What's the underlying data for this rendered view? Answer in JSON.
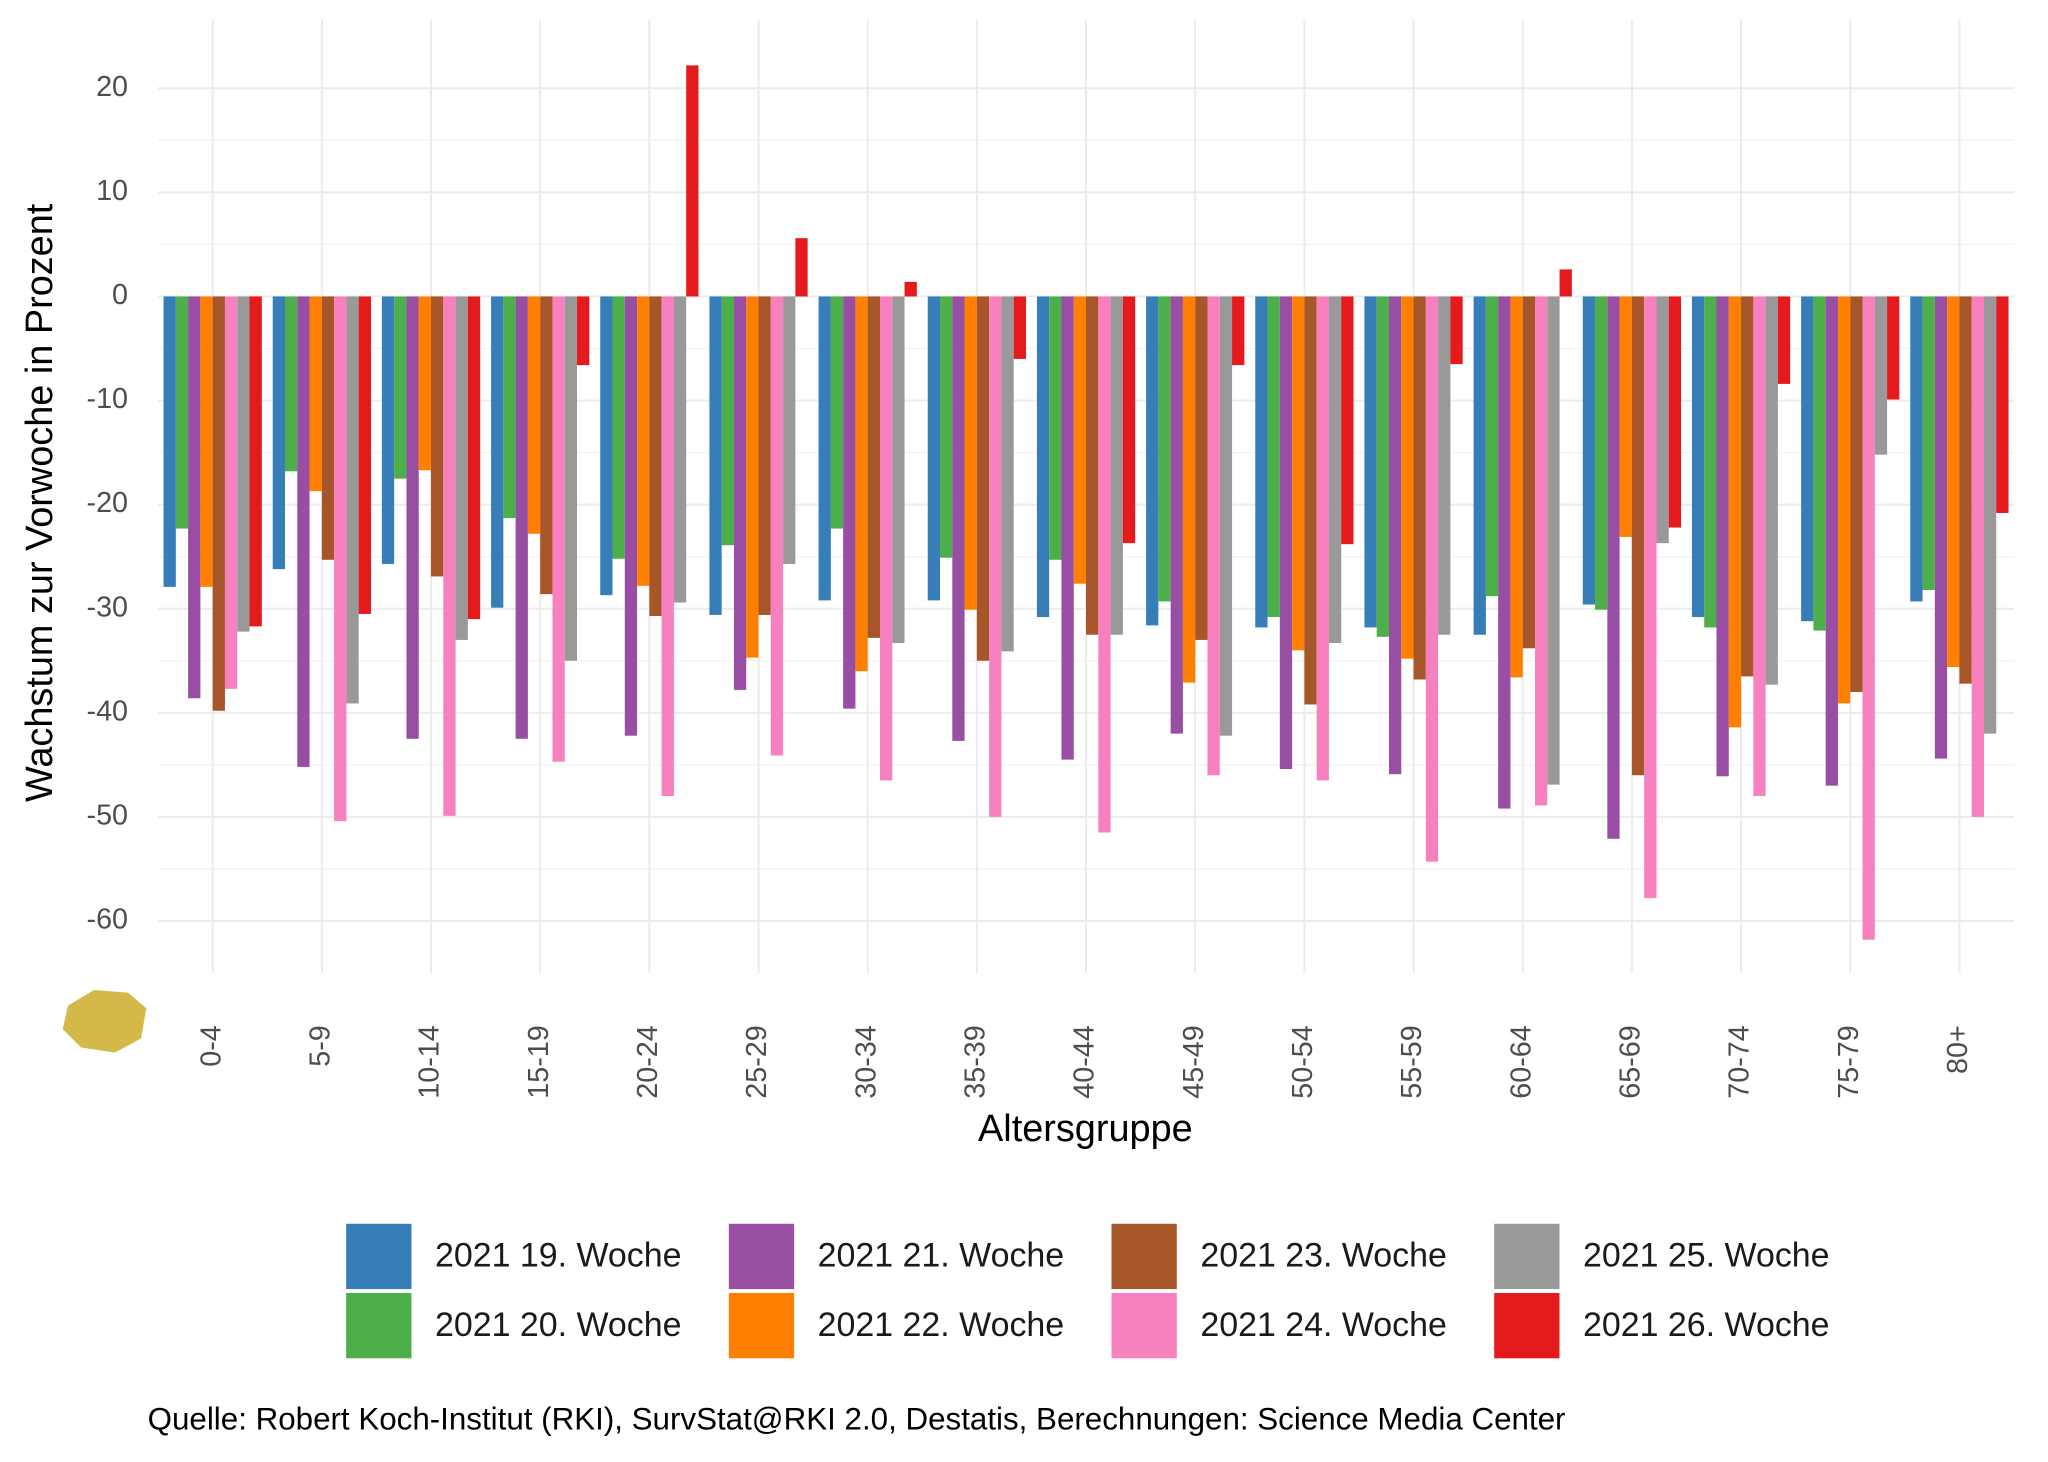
{
  "chart_data": {
    "type": "bar",
    "x_label": "Altersgruppe",
    "y_label": "Wachstum zur Vorwoche in Prozent",
    "caption": "Quelle: Robert Koch-Institut (RKI), SurvStat@RKI 2.0, Destatis, Berechnungen: Science Media Center",
    "categories": [
      "0-4",
      "5-9",
      "10-14",
      "15-19",
      "20-24",
      "25-29",
      "30-34",
      "35-39",
      "40-44",
      "45-49",
      "50-54",
      "55-59",
      "60-64",
      "65-69",
      "70-74",
      "75-79",
      "80+"
    ],
    "series": [
      {
        "name": "2021 19. Woche",
        "color": "#377eb8",
        "values": [
          -27.9,
          -26.2,
          -25.7,
          -29.9,
          -28.7,
          -30.6,
          -29.2,
          -29.2,
          -30.8,
          -31.6,
          -31.8,
          -31.8,
          -32.5,
          -29.6,
          -30.8,
          -31.2,
          -29.3
        ]
      },
      {
        "name": "2021 20. Woche",
        "color": "#4daf4a",
        "values": [
          -22.3,
          -16.8,
          -17.5,
          -21.3,
          -25.2,
          -23.9,
          -22.3,
          -25.1,
          -25.3,
          -29.3,
          -30.8,
          -32.7,
          -28.8,
          -30.1,
          -31.8,
          -32.1,
          -28.2
        ]
      },
      {
        "name": "2021 21. Woche",
        "color": "#984ea3",
        "values": [
          -38.6,
          -45.2,
          -42.5,
          -42.5,
          -42.2,
          -37.8,
          -39.6,
          -42.7,
          -44.5,
          -42.0,
          -45.4,
          -45.9,
          -49.2,
          -52.1,
          -46.1,
          -47.0,
          -44.4
        ]
      },
      {
        "name": "2021 22. Woche",
        "color": "#ff7f00",
        "values": [
          -27.9,
          -18.7,
          -16.7,
          -22.8,
          -27.8,
          -34.7,
          -36.0,
          -30.1,
          -27.6,
          -37.1,
          -34.0,
          -34.8,
          -36.6,
          -23.1,
          -41.4,
          -39.1,
          -35.6
        ]
      },
      {
        "name": "2021 23. Woche",
        "color": "#a65628",
        "values": [
          -39.8,
          -25.3,
          -26.9,
          -28.6,
          -30.7,
          -30.6,
          -32.8,
          -35.0,
          -32.5,
          -33.0,
          -39.2,
          -36.8,
          -33.8,
          -46.0,
          -36.5,
          -38.0,
          -37.2
        ]
      },
      {
        "name": "2021 24. Woche",
        "color": "#f781bf",
        "values": [
          -37.7,
          -50.4,
          -49.9,
          -44.7,
          -48.0,
          -44.1,
          -46.5,
          -50.0,
          -51.5,
          -46.0,
          -46.5,
          -54.3,
          -48.9,
          -57.8,
          -48.0,
          -61.8,
          -50.0
        ]
      },
      {
        "name": "2021 25. Woche",
        "color": "#999999",
        "values": [
          -32.2,
          -39.1,
          -33.0,
          -35.0,
          -29.4,
          -25.7,
          -33.3,
          -34.1,
          -32.5,
          -42.2,
          -33.3,
          -32.5,
          -46.9,
          -23.7,
          -37.3,
          -15.2,
          -42.0
        ]
      },
      {
        "name": "2021 26. Woche",
        "color": "#e41a1c",
        "values": [
          -31.7,
          -30.5,
          -31.0,
          -6.6,
          22.2,
          5.6,
          1.4,
          -6.0,
          -23.7,
          -6.6,
          -23.8,
          -6.5,
          2.6,
          -22.2,
          -8.4,
          -9.9,
          -20.8
        ]
      }
    ],
    "ylim": [
      -65,
      26.6
    ],
    "yticks": [
      -60,
      -50,
      -40,
      -30,
      -20,
      -10,
      0,
      10,
      20
    ],
    "grid": true,
    "legend": "bottom"
  }
}
